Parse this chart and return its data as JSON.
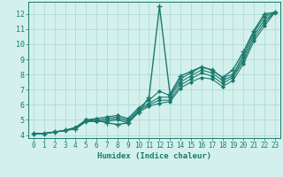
{
  "xlabel": "Humidex (Indice chaleur)",
  "ylabel": "",
  "bg_color": "#d4f0ec",
  "grid_color": "#a8d8d2",
  "line_color": "#1a7a6e",
  "xlim": [
    -0.5,
    23.5
  ],
  "ylim": [
    3.8,
    12.8
  ],
  "xticks": [
    0,
    1,
    2,
    3,
    4,
    5,
    6,
    7,
    8,
    9,
    10,
    11,
    12,
    13,
    14,
    15,
    16,
    17,
    18,
    19,
    20,
    21,
    22,
    23
  ],
  "yticks": [
    4,
    5,
    6,
    7,
    8,
    9,
    10,
    11,
    12
  ],
  "lines": [
    {
      "x": [
        0,
        1,
        2,
        3,
        4,
        5,
        6,
        7,
        8,
        9,
        10,
        11,
        12,
        13,
        14,
        15,
        16,
        17,
        18,
        19,
        20,
        21,
        22,
        23
      ],
      "y": [
        4.1,
        4.1,
        4.2,
        4.3,
        4.4,
        4.9,
        5.0,
        4.8,
        4.7,
        4.8,
        5.5,
        6.5,
        12.5,
        6.7,
        7.9,
        8.2,
        8.5,
        8.3,
        7.8,
        8.3,
        9.5,
        10.9,
        12.0,
        12.1
      ],
      "marker": "+",
      "lw": 1.0,
      "ms": 4.0,
      "mew": 1.0
    },
    {
      "x": [
        0,
        1,
        2,
        3,
        4,
        5,
        6,
        7,
        8,
        9,
        10,
        11,
        12,
        13,
        14,
        15,
        16,
        17,
        18,
        19,
        20,
        21,
        22,
        23
      ],
      "y": [
        4.1,
        4.1,
        4.2,
        4.3,
        4.5,
        5.0,
        5.1,
        5.2,
        5.3,
        5.1,
        5.8,
        6.3,
        6.9,
        6.6,
        7.7,
        8.1,
        8.5,
        8.3,
        7.8,
        8.0,
        9.3,
        10.8,
        11.8,
        12.1
      ],
      "marker": "D",
      "lw": 0.8,
      "ms": 2.0,
      "mew": 0.6
    },
    {
      "x": [
        0,
        1,
        2,
        3,
        4,
        5,
        6,
        7,
        8,
        9,
        10,
        11,
        12,
        13,
        14,
        15,
        16,
        17,
        18,
        19,
        20,
        21,
        22,
        23
      ],
      "y": [
        4.1,
        4.1,
        4.2,
        4.3,
        4.5,
        5.0,
        5.0,
        5.1,
        5.2,
        5.0,
        5.7,
        6.1,
        6.5,
        6.5,
        7.5,
        7.9,
        8.3,
        8.1,
        7.6,
        7.9,
        9.1,
        10.6,
        11.6,
        12.1
      ],
      "marker": "D",
      "lw": 0.8,
      "ms": 2.0,
      "mew": 0.6
    },
    {
      "x": [
        0,
        1,
        2,
        3,
        4,
        5,
        6,
        7,
        8,
        9,
        10,
        11,
        12,
        13,
        14,
        15,
        16,
        17,
        18,
        19,
        20,
        21,
        22,
        23
      ],
      "y": [
        4.1,
        4.1,
        4.2,
        4.3,
        4.5,
        4.9,
        4.9,
        5.0,
        5.1,
        4.9,
        5.6,
        6.0,
        6.3,
        6.3,
        7.3,
        7.7,
        8.1,
        7.9,
        7.4,
        7.8,
        8.9,
        10.4,
        11.4,
        12.1
      ],
      "marker": "D",
      "lw": 0.8,
      "ms": 2.0,
      "mew": 0.6
    },
    {
      "x": [
        0,
        1,
        2,
        3,
        4,
        5,
        6,
        7,
        8,
        9,
        10,
        11,
        12,
        13,
        14,
        15,
        16,
        17,
        18,
        19,
        20,
        21,
        22,
        23
      ],
      "y": [
        4.1,
        4.1,
        4.2,
        4.3,
        4.5,
        4.9,
        4.9,
        4.9,
        5.0,
        4.8,
        5.5,
        5.9,
        6.1,
        6.2,
        7.1,
        7.5,
        7.8,
        7.7,
        7.2,
        7.6,
        8.7,
        10.2,
        11.2,
        12.1
      ],
      "marker": "D",
      "lw": 0.8,
      "ms": 2.0,
      "mew": 0.6
    }
  ]
}
